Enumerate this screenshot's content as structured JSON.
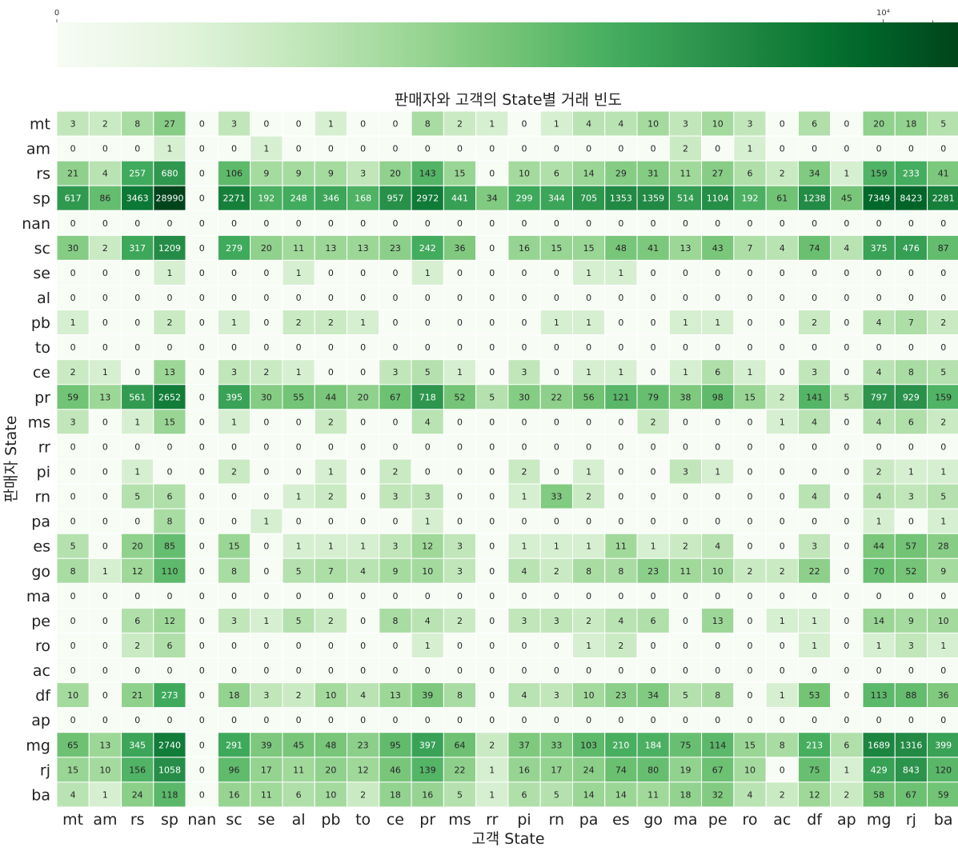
{
  "chart_data": {
    "type": "heatmap",
    "title": "판매자와 고객의 State별 거래 빈도",
    "xlabel": "고객 State",
    "ylabel": "판매자 State",
    "x_categories": [
      "mt",
      "am",
      "rs",
      "sp",
      "nan",
      "sc",
      "se",
      "al",
      "pb",
      "to",
      "ce",
      "pr",
      "ms",
      "rr",
      "pi",
      "rn",
      "pa",
      "es",
      "go",
      "ma",
      "pe",
      "ro",
      "ac",
      "df",
      "ap",
      "mg",
      "rj",
      "ba"
    ],
    "y_categories": [
      "mt",
      "am",
      "rs",
      "sp",
      "nan",
      "sc",
      "se",
      "al",
      "pb",
      "to",
      "ce",
      "pr",
      "ms",
      "rr",
      "pi",
      "rn",
      "pa",
      "es",
      "go",
      "ma",
      "pe",
      "ro",
      "ac",
      "df",
      "ap",
      "mg",
      "rj",
      "ba"
    ],
    "values": [
      [
        3,
        2,
        8,
        27,
        0,
        3,
        0,
        0,
        1,
        0,
        0,
        8,
        2,
        1,
        0,
        1,
        4,
        4,
        10,
        3,
        10,
        3,
        0,
        6,
        0,
        20,
        18,
        5
      ],
      [
        0,
        0,
        0,
        1,
        0,
        0,
        1,
        0,
        0,
        0,
        0,
        0,
        0,
        0,
        0,
        0,
        0,
        0,
        0,
        2,
        0,
        1,
        0,
        0,
        0,
        0,
        0,
        0
      ],
      [
        21,
        4,
        257,
        680,
        0,
        106,
        9,
        9,
        9,
        3,
        20,
        143,
        15,
        0,
        10,
        6,
        14,
        29,
        31,
        11,
        27,
        6,
        2,
        34,
        1,
        159,
        233,
        41
      ],
      [
        617,
        86,
        3463,
        28990,
        0,
        2271,
        192,
        248,
        346,
        168,
        957,
        2972,
        441,
        34,
        299,
        344,
        705,
        1353,
        1359,
        514,
        1104,
        192,
        61,
        1238,
        45,
        7349,
        8423,
        2281
      ],
      [
        0,
        0,
        0,
        0,
        0,
        0,
        0,
        0,
        0,
        0,
        0,
        0,
        0,
        0,
        0,
        0,
        0,
        0,
        0,
        0,
        0,
        0,
        0,
        0,
        0,
        0,
        0,
        0
      ],
      [
        30,
        2,
        317,
        1209,
        0,
        279,
        20,
        11,
        13,
        13,
        23,
        242,
        36,
        0,
        16,
        15,
        15,
        48,
        41,
        13,
        43,
        7,
        4,
        74,
        4,
        375,
        476,
        87
      ],
      [
        0,
        0,
        0,
        1,
        0,
        0,
        0,
        1,
        0,
        0,
        0,
        1,
        0,
        0,
        0,
        0,
        1,
        1,
        0,
        0,
        0,
        0,
        0,
        0,
        0,
        0,
        0,
        0
      ],
      [
        0,
        0,
        0,
        0,
        0,
        0,
        0,
        0,
        0,
        0,
        0,
        0,
        0,
        0,
        0,
        0,
        0,
        0,
        0,
        0,
        0,
        0,
        0,
        0,
        0,
        0,
        0,
        0
      ],
      [
        1,
        0,
        0,
        2,
        0,
        1,
        0,
        2,
        2,
        1,
        0,
        0,
        0,
        0,
        0,
        1,
        1,
        0,
        0,
        1,
        1,
        0,
        0,
        2,
        0,
        4,
        7,
        2
      ],
      [
        0,
        0,
        0,
        0,
        0,
        0,
        0,
        0,
        0,
        0,
        0,
        0,
        0,
        0,
        0,
        0,
        0,
        0,
        0,
        0,
        0,
        0,
        0,
        0,
        0,
        0,
        0,
        0
      ],
      [
        2,
        1,
        0,
        13,
        0,
        3,
        2,
        1,
        0,
        0,
        3,
        5,
        1,
        0,
        3,
        0,
        1,
        1,
        0,
        1,
        6,
        1,
        0,
        3,
        0,
        4,
        8,
        5
      ],
      [
        59,
        13,
        561,
        2652,
        0,
        395,
        30,
        55,
        44,
        20,
        67,
        718,
        52,
        5,
        30,
        22,
        56,
        121,
        79,
        38,
        98,
        15,
        2,
        141,
        5,
        797,
        929,
        159
      ],
      [
        3,
        0,
        1,
        15,
        0,
        1,
        0,
        0,
        2,
        0,
        0,
        4,
        0,
        0,
        0,
        0,
        0,
        0,
        2,
        0,
        0,
        0,
        1,
        4,
        0,
        4,
        6,
        2
      ],
      [
        0,
        0,
        0,
        0,
        0,
        0,
        0,
        0,
        0,
        0,
        0,
        0,
        0,
        0,
        0,
        0,
        0,
        0,
        0,
        0,
        0,
        0,
        0,
        0,
        0,
        0,
        0,
        0
      ],
      [
        0,
        0,
        1,
        0,
        0,
        2,
        0,
        0,
        1,
        0,
        2,
        0,
        0,
        0,
        2,
        0,
        1,
        0,
        0,
        3,
        1,
        0,
        0,
        0,
        0,
        2,
        1,
        1
      ],
      [
        0,
        0,
        5,
        6,
        0,
        0,
        0,
        1,
        2,
        0,
        3,
        3,
        0,
        0,
        1,
        33,
        2,
        0,
        0,
        0,
        0,
        0,
        0,
        4,
        0,
        4,
        3,
        5
      ],
      [
        0,
        0,
        0,
        8,
        0,
        0,
        1,
        0,
        0,
        0,
        0,
        1,
        0,
        0,
        0,
        0,
        0,
        0,
        0,
        0,
        0,
        0,
        0,
        0,
        0,
        1,
        0,
        1
      ],
      [
        5,
        0,
        20,
        85,
        0,
        15,
        0,
        1,
        1,
        1,
        3,
        12,
        3,
        0,
        1,
        1,
        1,
        11,
        1,
        2,
        4,
        0,
        0,
        3,
        0,
        44,
        57,
        28
      ],
      [
        8,
        1,
        12,
        110,
        0,
        8,
        0,
        5,
        7,
        4,
        9,
        10,
        3,
        0,
        4,
        2,
        8,
        8,
        23,
        11,
        10,
        2,
        2,
        22,
        0,
        70,
        52,
        9
      ],
      [
        0,
        0,
        0,
        0,
        0,
        0,
        0,
        0,
        0,
        0,
        0,
        0,
        0,
        0,
        0,
        0,
        0,
        0,
        0,
        0,
        0,
        0,
        0,
        0,
        0,
        0,
        0,
        0
      ],
      [
        0,
        0,
        6,
        12,
        0,
        3,
        1,
        5,
        2,
        0,
        8,
        4,
        2,
        0,
        3,
        3,
        2,
        4,
        6,
        0,
        13,
        0,
        1,
        1,
        0,
        14,
        9,
        10
      ],
      [
        0,
        0,
        2,
        6,
        0,
        0,
        0,
        0,
        0,
        0,
        0,
        1,
        0,
        0,
        0,
        0,
        1,
        2,
        0,
        0,
        0,
        0,
        0,
        1,
        0,
        1,
        3,
        1
      ],
      [
        0,
        0,
        0,
        0,
        0,
        0,
        0,
        0,
        0,
        0,
        0,
        0,
        0,
        0,
        0,
        0,
        0,
        0,
        0,
        0,
        0,
        0,
        0,
        0,
        0,
        0,
        0,
        0
      ],
      [
        10,
        0,
        21,
        273,
        0,
        18,
        3,
        2,
        10,
        4,
        13,
        39,
        8,
        0,
        4,
        3,
        10,
        23,
        34,
        5,
        8,
        0,
        1,
        53,
        0,
        113,
        88,
        36
      ],
      [
        0,
        0,
        0,
        0,
        0,
        0,
        0,
        0,
        0,
        0,
        0,
        0,
        0,
        0,
        0,
        0,
        0,
        0,
        0,
        0,
        0,
        0,
        0,
        0,
        0,
        0,
        0,
        0
      ],
      [
        65,
        13,
        345,
        2740,
        0,
        291,
        39,
        45,
        48,
        23,
        95,
        397,
        64,
        2,
        37,
        33,
        103,
        210,
        184,
        75,
        114,
        15,
        8,
        213,
        6,
        1689,
        1316,
        399
      ],
      [
        15,
        10,
        156,
        1058,
        0,
        96,
        17,
        11,
        20,
        12,
        46,
        139,
        22,
        1,
        16,
        17,
        24,
        74,
        80,
        19,
        67,
        10,
        0,
        75,
        1,
        429,
        843,
        120
      ],
      [
        4,
        1,
        24,
        118,
        0,
        16,
        11,
        6,
        10,
        2,
        18,
        16,
        5,
        1,
        6,
        5,
        14,
        14,
        11,
        18,
        32,
        4,
        2,
        12,
        2,
        58,
        67,
        59
      ]
    ],
    "colorbar": {
      "orientation": "horizontal",
      "location": "top",
      "scale": "symlog",
      "range": [
        0,
        28990
      ],
      "tick_labels": [
        "0",
        "10⁴"
      ],
      "colormap": "Greens",
      "colors": [
        "#f7fcf5",
        "#e5f5e0",
        "#c7e9c0",
        "#a1d99b",
        "#74c476",
        "#41ab5d",
        "#238b45",
        "#006d2c",
        "#00441b"
      ]
    }
  }
}
